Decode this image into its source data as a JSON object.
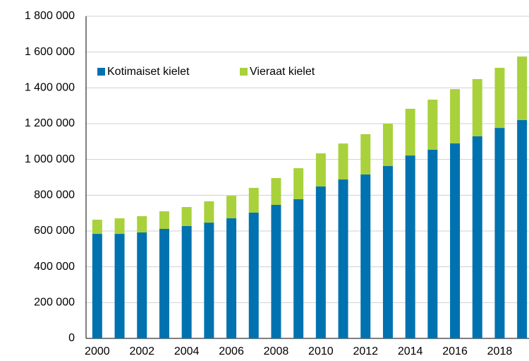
{
  "chart_data": {
    "type": "stacked_bar",
    "categories": [
      "2000",
      null,
      "2002",
      null,
      "2004",
      null,
      "2006",
      null,
      "2008",
      null,
      "2010",
      null,
      "2012",
      null,
      "2014",
      null,
      "2016",
      null,
      "2018",
      null
    ],
    "series": [
      {
        "name": "Kotimaiset kielet",
        "color": "#0072b0",
        "values": [
          584000,
          584000,
          592000,
          612000,
          628000,
          647000,
          671000,
          703000,
          746000,
          778000,
          849000,
          888000,
          916000,
          963000,
          1022000,
          1054000,
          1090000,
          1129000,
          1176000,
          1220000
        ]
      },
      {
        "name": "Vieraat kielet",
        "color": "#a9d13b",
        "values": [
          79000,
          87000,
          91000,
          98000,
          106000,
          119000,
          126000,
          138000,
          150000,
          173000,
          185000,
          201000,
          225000,
          237000,
          261000,
          280000,
          303000,
          320000,
          336000,
          355000
        ]
      }
    ],
    "ylim": [
      0,
      1800000
    ],
    "yticks": [
      0,
      {
        "value": 200000,
        "label": "200 000"
      },
      {
        "value": 400000,
        "label": "400 000"
      },
      {
        "value": 600000,
        "label": "600 000"
      },
      {
        "value": 800000,
        "label": "800 000"
      },
      {
        "value": 1000000,
        "label": "1 000 000"
      },
      {
        "value": 1200000,
        "label": "1 200 000"
      },
      {
        "value": 1400000,
        "label": "1 400 000"
      },
      {
        "value": 1600000,
        "label": "1 600 000"
      },
      {
        "value": 1800000,
        "label": "1 800 000"
      }
    ],
    "grid": true,
    "legend": "top-left"
  }
}
